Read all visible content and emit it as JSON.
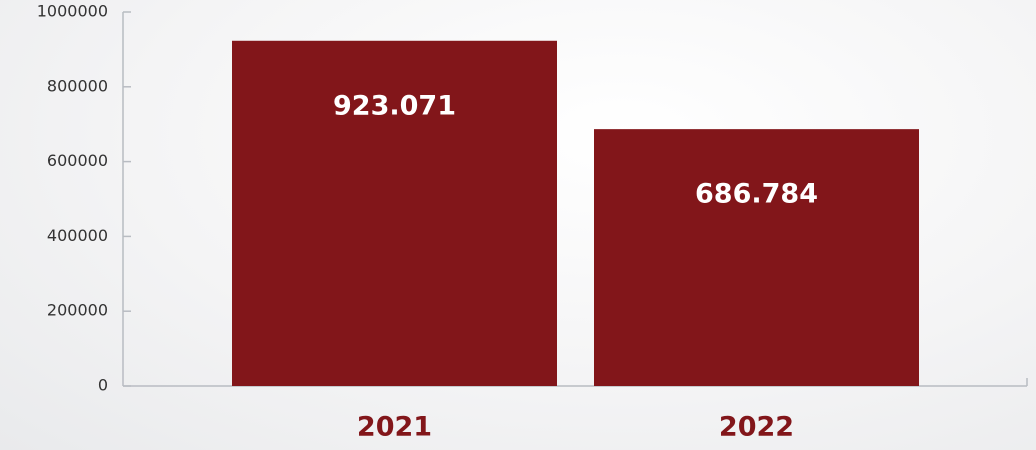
{
  "chart_data": {
    "type": "bar",
    "categories": [
      "2021",
      "2022"
    ],
    "values": [
      923071,
      686784
    ],
    "value_labels": [
      "923.071",
      "686.784"
    ],
    "color": "#82161a",
    "ylim": [
      0,
      1000000
    ],
    "yticks": [
      0,
      200000,
      400000,
      600000,
      800000,
      1000000
    ]
  }
}
